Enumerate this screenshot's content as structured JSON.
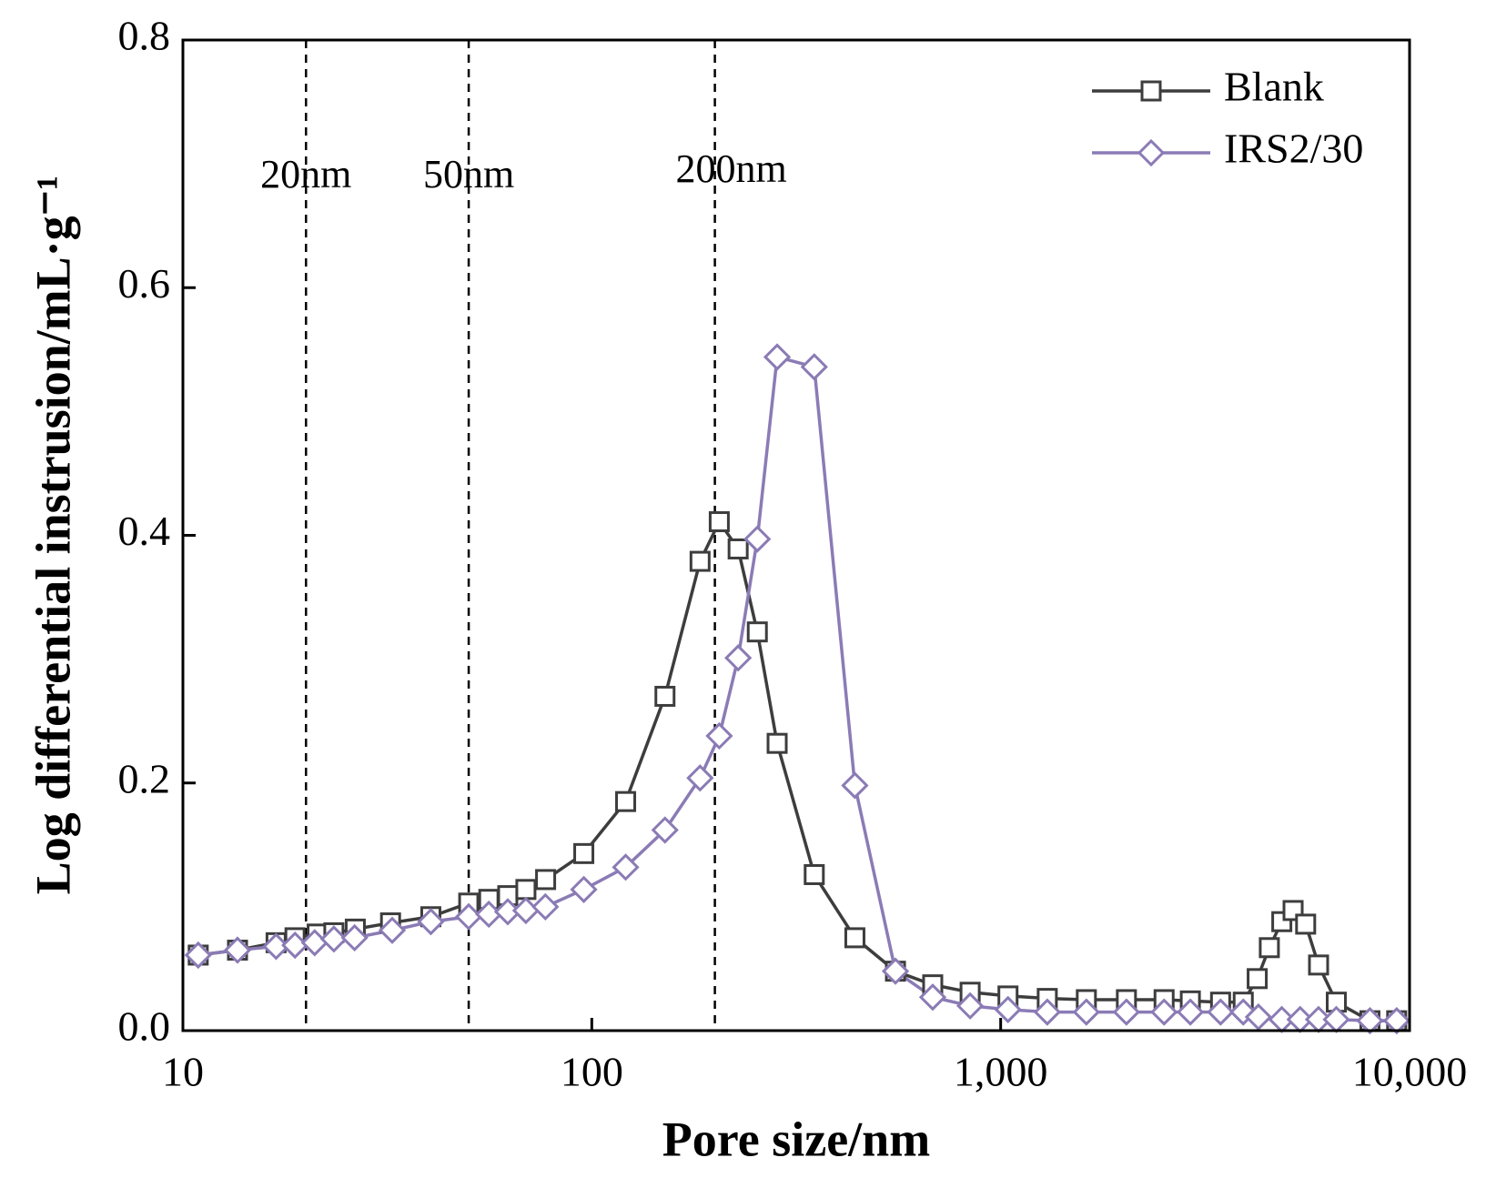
{
  "chart_data": {
    "type": "line",
    "xlabel": "Pore size/nm",
    "ylabel": "Log differential instrusion/mL·g⁻¹",
    "xscale": "log",
    "xlim": [
      10,
      10000
    ],
    "xticks": [
      10,
      100,
      {
        "value": 1000,
        "label": "1,000"
      },
      {
        "value": 10000,
        "label": "10,000"
      }
    ],
    "ylim": [
      0,
      0.8
    ],
    "yticks": [
      {
        "value": 0,
        "label": "0.0"
      },
      0.2,
      0.4,
      0.6,
      0.8
    ],
    "legend": "upper right",
    "annotations": [
      {
        "x": 20,
        "label": "20nm"
      },
      {
        "x": 50,
        "label": "50nm"
      },
      {
        "x": 200,
        "label": "200nm"
      }
    ],
    "series": [
      {
        "name": "Blank",
        "color": "#3d3d3d",
        "marker": "square",
        "x": [
          10.9,
          13.6,
          16.9,
          18.8,
          21.3,
          23.4,
          26.4,
          32.2,
          40.4,
          50,
          56,
          62.3,
          69,
          77.1,
          95.6,
          121,
          151,
          184,
          205,
          228,
          254,
          284,
          350,
          440,
          553,
          682,
          842,
          1042,
          1300,
          1620,
          2030,
          2510,
          2910,
          3450,
          3920,
          4240,
          4540,
          4870,
          5190,
          5570,
          5990,
          6620,
          8000,
          9300
        ],
        "values": [
          0.061,
          0.065,
          0.071,
          0.075,
          0.078,
          0.079,
          0.082,
          0.087,
          0.092,
          0.103,
          0.106,
          0.109,
          0.114,
          0.122,
          0.143,
          0.185,
          0.27,
          0.379,
          0.411,
          0.389,
          0.322,
          0.232,
          0.126,
          0.075,
          0.048,
          0.037,
          0.031,
          0.028,
          0.026,
          0.025,
          0.025,
          0.025,
          0.024,
          0.023,
          0.023,
          0.042,
          0.067,
          0.088,
          0.097,
          0.086,
          0.053,
          0.023,
          0.008,
          0.008
        ]
      },
      {
        "name": "IRS2/30",
        "color": "#8b7bb5",
        "marker": "diamond",
        "x": [
          10.9,
          13.6,
          16.9,
          18.8,
          21,
          23.4,
          26.3,
          32.5,
          40.4,
          50,
          56,
          62.3,
          69,
          77,
          95.6,
          121,
          151,
          184,
          205,
          228,
          254,
          284,
          350,
          440,
          553,
          682,
          842,
          1042,
          1300,
          1620,
          2030,
          2510,
          2910,
          3450,
          3920,
          4270,
          4870,
          5400,
          5990,
          6620,
          8000,
          9300
        ],
        "values": [
          0.061,
          0.065,
          0.068,
          0.069,
          0.071,
          0.074,
          0.075,
          0.081,
          0.088,
          0.092,
          0.094,
          0.096,
          0.097,
          0.1,
          0.114,
          0.132,
          0.162,
          0.204,
          0.238,
          0.301,
          0.397,
          0.544,
          0.536,
          0.198,
          0.048,
          0.027,
          0.02,
          0.017,
          0.015,
          0.015,
          0.015,
          0.015,
          0.015,
          0.015,
          0.015,
          0.011,
          0.009,
          0.009,
          0.009,
          0.009,
          0.008,
          0.008
        ]
      }
    ]
  }
}
